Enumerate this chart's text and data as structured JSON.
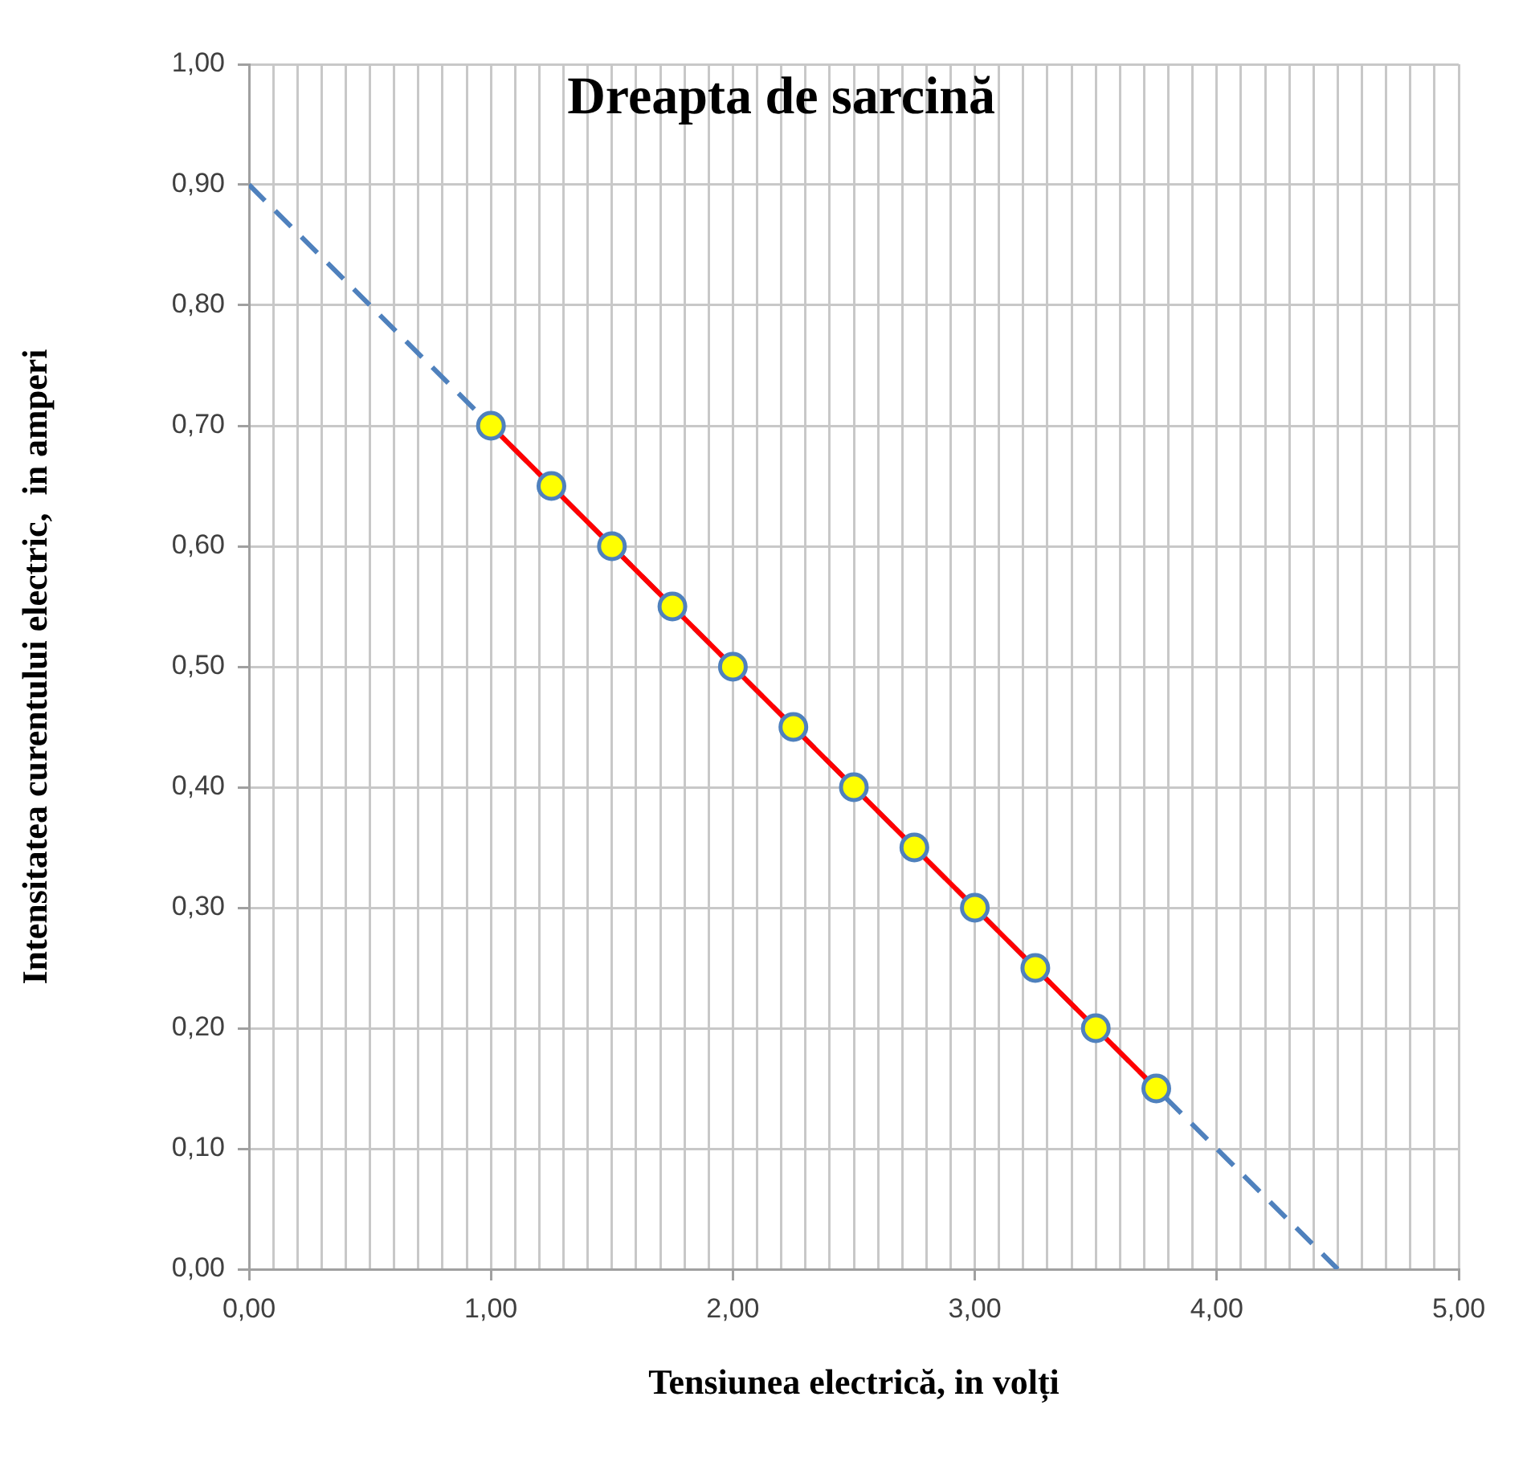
{
  "chart_data": {
    "type": "line",
    "title": "Dreapta de sarcină",
    "xlabel": "Tensiunea electrică, in volți",
    "ylabel": "Intensitatea curentului electric,  in amperi",
    "xlim": [
      0,
      5
    ],
    "ylim": [
      0,
      1
    ],
    "xticks": [
      {
        "value": 0,
        "label": "0,00"
      },
      {
        "value": 0.1,
        "label": null
      },
      {
        "value": 0.2,
        "label": null
      },
      {
        "value": 0.3,
        "label": null
      },
      {
        "value": 0.4,
        "label": null
      },
      {
        "value": 0.5,
        "label": null
      },
      {
        "value": 0.6,
        "label": null
      },
      {
        "value": 0.7,
        "label": null
      },
      {
        "value": 0.8,
        "label": null
      },
      {
        "value": 0.9,
        "label": null
      },
      {
        "value": 1,
        "label": "1,00"
      },
      {
        "value": 1.1,
        "label": null
      },
      {
        "value": 1.2,
        "label": null
      },
      {
        "value": 1.3,
        "label": null
      },
      {
        "value": 1.4,
        "label": null
      },
      {
        "value": 1.5,
        "label": null
      },
      {
        "value": 1.6,
        "label": null
      },
      {
        "value": 1.7,
        "label": null
      },
      {
        "value": 1.8,
        "label": null
      },
      {
        "value": 1.9,
        "label": null
      },
      {
        "value": 2,
        "label": "2,00"
      },
      {
        "value": 2.1,
        "label": null
      },
      {
        "value": 2.2,
        "label": null
      },
      {
        "value": 2.3,
        "label": null
      },
      {
        "value": 2.4,
        "label": null
      },
      {
        "value": 2.5,
        "label": null
      },
      {
        "value": 2.6,
        "label": null
      },
      {
        "value": 2.7,
        "label": null
      },
      {
        "value": 2.8,
        "label": null
      },
      {
        "value": 2.9,
        "label": null
      },
      {
        "value": 3,
        "label": "3,00"
      },
      {
        "value": 3.1,
        "label": null
      },
      {
        "value": 3.2,
        "label": null
      },
      {
        "value": 3.3,
        "label": null
      },
      {
        "value": 3.4,
        "label": null
      },
      {
        "value": 3.5,
        "label": null
      },
      {
        "value": 3.6,
        "label": null
      },
      {
        "value": 3.7,
        "label": null
      },
      {
        "value": 3.8,
        "label": null
      },
      {
        "value": 3.9,
        "label": null
      },
      {
        "value": 4,
        "label": "4,00"
      },
      {
        "value": 4.1,
        "label": null
      },
      {
        "value": 4.2,
        "label": null
      },
      {
        "value": 4.3,
        "label": null
      },
      {
        "value": 4.4,
        "label": null
      },
      {
        "value": 4.5,
        "label": null
      },
      {
        "value": 4.6,
        "label": null
      },
      {
        "value": 4.7,
        "label": null
      },
      {
        "value": 4.8,
        "label": null
      },
      {
        "value": 4.9,
        "label": null
      },
      {
        "value": 5,
        "label": "5,00"
      }
    ],
    "yticks": [
      {
        "value": 0,
        "label": "0,00"
      },
      {
        "value": 0.1,
        "label": "0,10"
      },
      {
        "value": 0.2,
        "label": "0,20"
      },
      {
        "value": 0.3,
        "label": "0,30"
      },
      {
        "value": 0.4,
        "label": "0,40"
      },
      {
        "value": 0.5,
        "label": "0,50"
      },
      {
        "value": 0.6,
        "label": "0,60"
      },
      {
        "value": 0.7,
        "label": "0,70"
      },
      {
        "value": 0.8,
        "label": "0,80"
      },
      {
        "value": 0.9,
        "label": "0,90"
      },
      {
        "value": 1,
        "label": "1,00"
      }
    ],
    "grid": true,
    "legend": false,
    "series": [
      {
        "type": "line",
        "color": "#ff0000",
        "marker": "circle",
        "line_style": "solid",
        "x": [
          1,
          1.25,
          1.5,
          1.75,
          2,
          2.25,
          2.5,
          2.75,
          3,
          3.25,
          3.5,
          3.75
        ],
        "values": [
          0.7,
          0.65,
          0.6,
          0.55,
          0.5,
          0.45,
          0.4,
          0.35,
          0.3,
          0.25,
          0.2,
          0.15
        ]
      },
      {
        "type": "line",
        "color": "#4f81bd",
        "marker": "none",
        "line_style": "dashed",
        "x": [
          0,
          4.5
        ],
        "values": [
          0.9,
          0
        ]
      }
    ]
  }
}
